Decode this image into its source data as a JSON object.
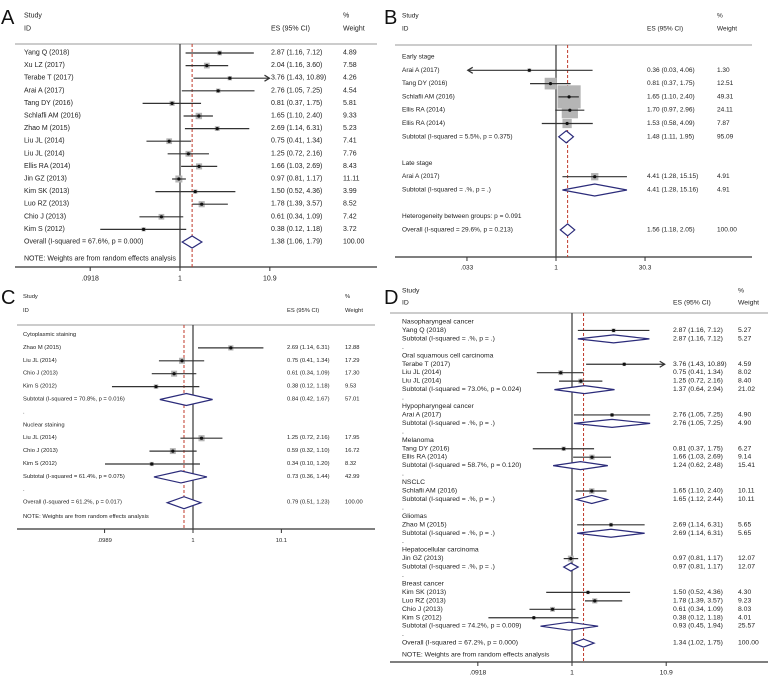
{
  "colors": {
    "ci_line": "#333333",
    "square": "#b5b5b5",
    "point": "#111111",
    "diamond": "#2b2b7a",
    "null_line": "#444444",
    "overall_line": "#c0392b"
  },
  "chart_data": [
    {
      "type": "forest",
      "panel_label": "A",
      "scale": "log",
      "header": {
        "study": "Study",
        "id": "ID",
        "es": "ES (95% CI)",
        "pct": "%",
        "weight": "Weight"
      },
      "ticks": [
        {
          "value": 0.0918,
          "label": ".0918"
        },
        {
          "value": 1,
          "label": "1"
        },
        {
          "value": 10.9,
          "label": "10.9"
        }
      ],
      "overall_es": 1.38,
      "note": "NOTE: Weights are from random effects analysis",
      "rows": [
        {
          "kind": "study",
          "label": "Yang Q (2018)",
          "es": 2.87,
          "lo": 1.16,
          "hi": 7.12,
          "w": 4.89
        },
        {
          "kind": "study",
          "label": "Xu LZ (2017)",
          "es": 2.04,
          "lo": 1.16,
          "hi": 3.6,
          "w": 7.58
        },
        {
          "kind": "study",
          "label": "Terabe T (2017)",
          "es": 3.76,
          "lo": 1.43,
          "hi": 10.89,
          "w": 4.26
        },
        {
          "kind": "study",
          "label": "Arai A (2017)",
          "es": 2.76,
          "lo": 1.05,
          "hi": 7.25,
          "w": 4.54
        },
        {
          "kind": "study",
          "label": "Tang DY (2016)",
          "es": 0.81,
          "lo": 0.37,
          "hi": 1.75,
          "w": 5.81
        },
        {
          "kind": "study",
          "label": "Schlafli AM (2016)",
          "es": 1.65,
          "lo": 1.1,
          "hi": 2.4,
          "w": 9.33
        },
        {
          "kind": "study",
          "label": "Zhao M (2015)",
          "es": 2.69,
          "lo": 1.14,
          "hi": 6.31,
          "w": 5.23
        },
        {
          "kind": "study",
          "label": "Liu JL (2014)",
          "es": 0.75,
          "lo": 0.41,
          "hi": 1.34,
          "w": 7.41
        },
        {
          "kind": "study",
          "label": "Liu JL (2014)",
          "es": 1.25,
          "lo": 0.72,
          "hi": 2.16,
          "w": 7.76
        },
        {
          "kind": "study",
          "label": "Ellis RA (2014)",
          "es": 1.66,
          "lo": 1.03,
          "hi": 2.69,
          "w": 8.43
        },
        {
          "kind": "study",
          "label": "Jin GZ (2013)",
          "es": 0.97,
          "lo": 0.81,
          "hi": 1.17,
          "w": 11.11
        },
        {
          "kind": "study",
          "label": "Kim SK (2013)",
          "es": 1.5,
          "lo": 0.52,
          "hi": 4.36,
          "w": 3.99
        },
        {
          "kind": "study",
          "label": "Luo RZ (2013)",
          "es": 1.78,
          "lo": 1.39,
          "hi": 3.57,
          "w": 8.52
        },
        {
          "kind": "study",
          "label": "Chio J (2013)",
          "es": 0.61,
          "lo": 0.34,
          "hi": 1.09,
          "w": 7.42
        },
        {
          "kind": "study",
          "label": "Kim S (2012)",
          "es": 0.38,
          "lo": 0.12,
          "hi": 1.18,
          "w": 3.72
        },
        {
          "kind": "overall",
          "label": "Overall  (I-squared = 67.6%, p = 0.000)",
          "es": 1.38,
          "lo": 1.06,
          "hi": 1.79,
          "w": 100.0
        }
      ]
    },
    {
      "type": "forest",
      "panel_label": "B",
      "scale": "log",
      "header": {
        "study": "Study",
        "id": "ID",
        "es": "ES (95% CI)",
        "pct": "%",
        "weight": "Weight"
      },
      "ticks": [
        {
          "value": 0.033,
          "label": ".033"
        },
        {
          "value": 1,
          "label": "1"
        },
        {
          "value": 30.3,
          "label": "30.3"
        }
      ],
      "overall_es": 1.56,
      "note": "",
      "rows": [
        {
          "kind": "group",
          "label": "Early stage"
        },
        {
          "kind": "study",
          "label": "Arai A (2017)",
          "es": 0.36,
          "lo": 0.03,
          "hi": 4.06,
          "w": 1.3
        },
        {
          "kind": "study",
          "label": "Tang DY (2016)",
          "es": 0.81,
          "lo": 0.37,
          "hi": 1.75,
          "w": 12.51
        },
        {
          "kind": "study",
          "label": "Schlafli AM (2016)",
          "es": 1.65,
          "lo": 1.1,
          "hi": 2.4,
          "w": 49.31
        },
        {
          "kind": "study",
          "label": "Ellis RA (2014)",
          "es": 1.7,
          "lo": 0.97,
          "hi": 2.96,
          "w": 24.11
        },
        {
          "kind": "study",
          "label": "Ellis RA (2014)",
          "es": 1.53,
          "lo": 0.58,
          "hi": 4.09,
          "w": 7.87
        },
        {
          "kind": "subtotal",
          "label": "Subtotal  (I-squared = 5.5%, p = 0.375)",
          "es": 1.48,
          "lo": 1.11,
          "hi": 1.95,
          "w": 95.09
        },
        {
          "kind": "spacer",
          "label": ""
        },
        {
          "kind": "group",
          "label": "Late stage"
        },
        {
          "kind": "study",
          "label": "Arai A (2017)",
          "es": 4.41,
          "lo": 1.28,
          "hi": 15.15,
          "w": 4.91
        },
        {
          "kind": "subtotal",
          "label": "Subtotal  (I-squared = .%, p = .)",
          "es": 4.41,
          "lo": 1.28,
          "hi": 15.16,
          "w": 4.91
        },
        {
          "kind": "spacer",
          "label": ""
        },
        {
          "kind": "group",
          "label": "Heterogeneity between groups: p = 0.091"
        },
        {
          "kind": "overall",
          "label": "Overall  (I-squared = 29.6%, p = 0.213)",
          "es": 1.56,
          "lo": 1.18,
          "hi": 2.05,
          "w": 100.0
        }
      ]
    },
    {
      "type": "forest",
      "panel_label": "C",
      "scale": "log",
      "header": {
        "study": "Study",
        "id": "ID",
        "es": "ES (95% CI)",
        "pct": "%",
        "weight": "Weight"
      },
      "ticks": [
        {
          "value": 0.0989,
          "label": ".0989"
        },
        {
          "value": 1,
          "label": "1"
        },
        {
          "value": 10.1,
          "label": "10.1"
        }
      ],
      "overall_es": 0.79,
      "note": "NOTE: Weights are from random effects analysis",
      "rows": [
        {
          "kind": "group",
          "label": "Cytoplasmic staining"
        },
        {
          "kind": "study",
          "label": "Zhao M (2015)",
          "es": 2.69,
          "lo": 1.14,
          "hi": 6.31,
          "w": 12.88
        },
        {
          "kind": "study",
          "label": "Liu JL (2014)",
          "es": 0.75,
          "lo": 0.41,
          "hi": 1.34,
          "w": 17.29
        },
        {
          "kind": "study",
          "label": "Chio J (2013)",
          "es": 0.61,
          "lo": 0.34,
          "hi": 1.09,
          "w": 17.3
        },
        {
          "kind": "study",
          "label": "Kim S (2012)",
          "es": 0.38,
          "lo": 0.12,
          "hi": 1.18,
          "w": 9.53
        },
        {
          "kind": "subtotal",
          "label": "Subtotal  (I-squared = 70.8%, p = 0.016)",
          "es": 0.84,
          "lo": 0.42,
          "hi": 1.67,
          "w": 57.01
        },
        {
          "kind": "spacer",
          "label": "."
        },
        {
          "kind": "group",
          "label": "Nuclear staining"
        },
        {
          "kind": "study",
          "label": "Liu JL (2014)",
          "es": 1.25,
          "lo": 0.72,
          "hi": 2.16,
          "w": 17.95
        },
        {
          "kind": "study",
          "label": "Chio J (2013)",
          "es": 0.59,
          "lo": 0.32,
          "hi": 1.1,
          "w": 16.72
        },
        {
          "kind": "study",
          "label": "Kim S (2012)",
          "es": 0.34,
          "lo": 0.1,
          "hi": 1.2,
          "w": 8.32
        },
        {
          "kind": "subtotal",
          "label": "Subtotal  (I-squared = 61.4%, p = 0.075)",
          "es": 0.73,
          "lo": 0.36,
          "hi": 1.44,
          "w": 42.99
        },
        {
          "kind": "spacer",
          "label": "."
        },
        {
          "kind": "overall",
          "label": "Overall  (I-squared = 61.2%, p = 0.017)",
          "es": 0.79,
          "lo": 0.51,
          "hi": 1.23,
          "w": 100.0
        }
      ]
    },
    {
      "type": "forest",
      "panel_label": "D",
      "scale": "log",
      "header": {
        "study": "Study",
        "id": "ID",
        "es": "ES (95% CI)",
        "pct": "%",
        "weight": "Weight"
      },
      "ticks": [
        {
          "value": 0.0918,
          "label": ".0918"
        },
        {
          "value": 1,
          "label": "1"
        },
        {
          "value": 10.9,
          "label": "10.9"
        }
      ],
      "overall_es": 1.34,
      "note": "NOTE: Weights are from random effects analysis",
      "rows": [
        {
          "kind": "group",
          "label": "Nasopharyngeal cancer"
        },
        {
          "kind": "study",
          "label": "Yang Q (2018)",
          "es": 2.87,
          "lo": 1.16,
          "hi": 7.12,
          "w": 5.27
        },
        {
          "kind": "subtotal",
          "label": "Subtotal  (I-squared = .%, p = .)",
          "es": 2.87,
          "lo": 1.16,
          "hi": 7.12,
          "w": 5.27
        },
        {
          "kind": "spacer",
          "label": "."
        },
        {
          "kind": "group",
          "label": "Oral squamous cell carcinoma"
        },
        {
          "kind": "study",
          "label": "Terabe T (2017)",
          "es": 3.76,
          "lo": 1.43,
          "hi": 10.89,
          "w": 4.59
        },
        {
          "kind": "study",
          "label": "Liu JL (2014)",
          "es": 0.75,
          "lo": 0.41,
          "hi": 1.34,
          "w": 8.02
        },
        {
          "kind": "study",
          "label": "Liu JL (2014)",
          "es": 1.25,
          "lo": 0.72,
          "hi": 2.16,
          "w": 8.4
        },
        {
          "kind": "subtotal",
          "label": "Subtotal  (I-squared = 73.0%, p = 0.024)",
          "es": 1.37,
          "lo": 0.64,
          "hi": 2.94,
          "w": 21.02
        },
        {
          "kind": "spacer",
          "label": "."
        },
        {
          "kind": "group",
          "label": "Hypopharyngeal cancer"
        },
        {
          "kind": "study",
          "label": "Arai A (2017)",
          "es": 2.76,
          "lo": 1.05,
          "hi": 7.25,
          "w": 4.9
        },
        {
          "kind": "subtotal",
          "label": "Subtotal  (I-squared = .%, p = .)",
          "es": 2.76,
          "lo": 1.05,
          "hi": 7.25,
          "w": 4.9
        },
        {
          "kind": "spacer",
          "label": "."
        },
        {
          "kind": "group",
          "label": "Melanoma"
        },
        {
          "kind": "study",
          "label": "Tang DY (2016)",
          "es": 0.81,
          "lo": 0.37,
          "hi": 1.75,
          "w": 6.27
        },
        {
          "kind": "study",
          "label": "Ellis RA (2014)",
          "es": 1.66,
          "lo": 1.03,
          "hi": 2.69,
          "w": 9.14
        },
        {
          "kind": "subtotal",
          "label": "Subtotal  (I-squared = 58.7%, p = 0.120)",
          "es": 1.24,
          "lo": 0.62,
          "hi": 2.48,
          "w": 15.41
        },
        {
          "kind": "spacer",
          "label": "."
        },
        {
          "kind": "group",
          "label": "NSCLC"
        },
        {
          "kind": "study",
          "label": "Schlafli AM (2016)",
          "es": 1.65,
          "lo": 1.1,
          "hi": 2.4,
          "w": 10.11
        },
        {
          "kind": "subtotal",
          "label": "Subtotal  (I-squared = .%, p = .)",
          "es": 1.65,
          "lo": 1.12,
          "hi": 2.44,
          "w": 10.11
        },
        {
          "kind": "spacer",
          "label": "."
        },
        {
          "kind": "group",
          "label": "Gliomas"
        },
        {
          "kind": "study",
          "label": "Zhao M (2015)",
          "es": 2.69,
          "lo": 1.14,
          "hi": 6.31,
          "w": 5.65
        },
        {
          "kind": "subtotal",
          "label": "Subtotal  (I-squared = .%, p = .)",
          "es": 2.69,
          "lo": 1.14,
          "hi": 6.31,
          "w": 5.65
        },
        {
          "kind": "spacer",
          "label": "."
        },
        {
          "kind": "group",
          "label": "Hepatocellular carcinoma"
        },
        {
          "kind": "study",
          "label": "Jin GZ (2013)",
          "es": 0.97,
          "lo": 0.81,
          "hi": 1.17,
          "w": 12.07
        },
        {
          "kind": "subtotal",
          "label": "Subtotal  (I-squared = .%, p = .)",
          "es": 0.97,
          "lo": 0.81,
          "hi": 1.17,
          "w": 12.07
        },
        {
          "kind": "spacer",
          "label": "."
        },
        {
          "kind": "group",
          "label": "Breast cancer"
        },
        {
          "kind": "study",
          "label": "Kim SK (2013)",
          "es": 1.5,
          "lo": 0.52,
          "hi": 4.36,
          "w": 4.3
        },
        {
          "kind": "study",
          "label": "Luo RZ (2013)",
          "es": 1.78,
          "lo": 1.39,
          "hi": 3.57,
          "w": 9.23
        },
        {
          "kind": "study",
          "label": "Chio J (2013)",
          "es": 0.61,
          "lo": 0.34,
          "hi": 1.09,
          "w": 8.03
        },
        {
          "kind": "study",
          "label": "Kim S (2012)",
          "es": 0.38,
          "lo": 0.12,
          "hi": 1.18,
          "w": 4.01
        },
        {
          "kind": "subtotal",
          "label": "Subtotal  (I-squared = 74.2%, p = 0.009)",
          "es": 0.93,
          "lo": 0.45,
          "hi": 1.94,
          "w": 25.57
        },
        {
          "kind": "spacer",
          "label": "."
        },
        {
          "kind": "overall",
          "label": "Overall  (I-squared = 67.2%, p = 0.000)",
          "es": 1.34,
          "lo": 1.02,
          "hi": 1.75,
          "w": 100.0
        }
      ]
    }
  ]
}
